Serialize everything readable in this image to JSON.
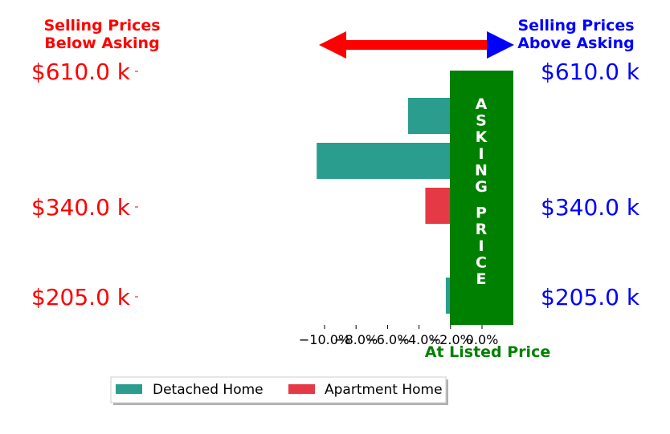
{
  "header": {
    "left_title": [
      "Selling Prices",
      "Below Asking"
    ],
    "right_title": [
      "Selling Prices",
      "Above Asking"
    ],
    "band_label": "ASKING PRICE",
    "at_listed": "At Listed Price"
  },
  "colors": {
    "below": "#ff0000",
    "above": "#0000ff",
    "detached": "#2a9d8f",
    "apartment": "#e63946",
    "band": "#008000",
    "at_listed": "#008000"
  },
  "chart_data": {
    "type": "bar",
    "orientation": "horizontal",
    "xlim": [
      -11.0,
      1.2
    ],
    "xticks": [
      -10,
      -8,
      -6,
      -4,
      -2,
      0
    ],
    "xtick_labels": [
      "−10.0%",
      "−8.0%",
      "−6.0%",
      "−4.0%",
      "−2.0%",
      "0.0%"
    ],
    "price_labels_left": [
      "$610.0 k",
      "$340.0 k",
      "$205.0 k"
    ],
    "price_labels_right": [
      "$610.0 k",
      "$340.0 k",
      "$205.0 k"
    ],
    "price_label_rows": [
      0,
      2,
      4
    ],
    "bars": [
      {
        "series": "Detached Home",
        "value": -4.7
      },
      {
        "series": "Detached Home",
        "value": -10.5
      },
      {
        "series": "Apartment Home",
        "value": -3.6
      },
      {
        "series": "Detached Home",
        "value": 1.15
      },
      {
        "series": "Detached Home",
        "value": -2.3
      }
    ],
    "series": [
      {
        "name": "Detached Home",
        "color": "#2a9d8f"
      },
      {
        "name": "Apartment Home",
        "color": "#e63946"
      }
    ],
    "legend_position": "bottom-left",
    "grid": false
  }
}
